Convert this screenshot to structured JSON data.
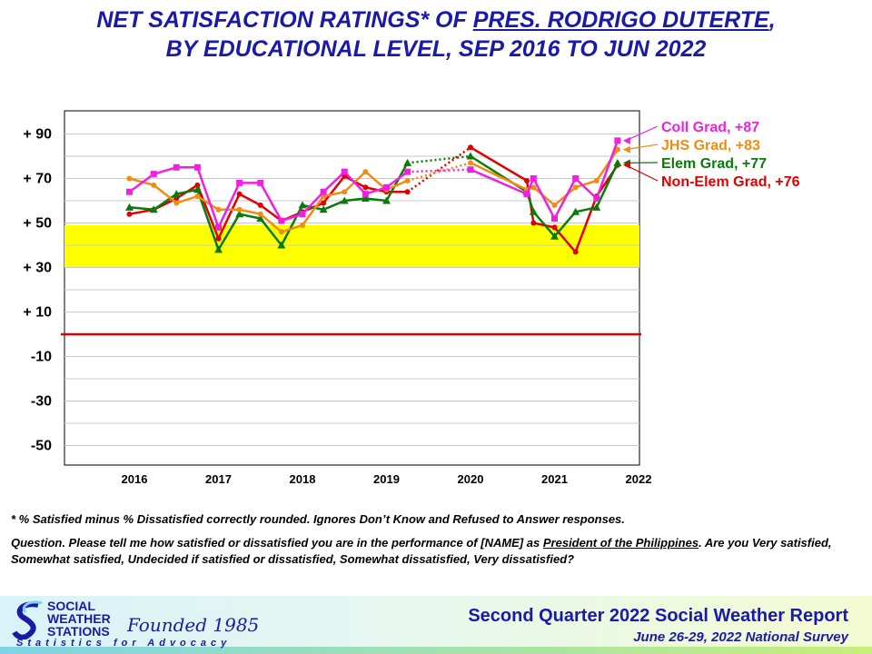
{
  "title": {
    "line1_pre": "NET SATISFACTION RATINGS* OF ",
    "line1_name": "PRES. RODRIGO DUTERTE",
    "line1_post": ",",
    "line2": "BY EDUCATIONAL LEVEL, SEP 2016 TO JUN 2022"
  },
  "chart_data": {
    "type": "line",
    "ylim": [
      -58,
      100
    ],
    "yticks": [
      {
        "value": 90,
        "label": "+ 90"
      },
      {
        "value": 70,
        "label": "+ 70"
      },
      {
        "value": 50,
        "label": "+ 50"
      },
      {
        "value": 30,
        "label": "+ 30"
      },
      {
        "value": 10,
        "label": "+ 10"
      },
      {
        "value": -10,
        "label": "-10"
      },
      {
        "value": -30,
        "label": "-30"
      },
      {
        "value": -50,
        "label": "-50"
      }
    ],
    "xlim": [
      2015.2,
      2022.1
    ],
    "xticks": [
      {
        "value": 2016,
        "label": "2016"
      },
      {
        "value": 2017,
        "label": "2017"
      },
      {
        "value": 2018,
        "label": "2018"
      },
      {
        "value": 2019,
        "label": "2019"
      },
      {
        "value": 2020,
        "label": "2020"
      },
      {
        "value": 2021,
        "label": "2021"
      },
      {
        "value": 2022,
        "label": "2022"
      }
    ],
    "band": {
      "from": 30,
      "to": 49,
      "color": "#ffff00"
    },
    "zero_line": {
      "value": 0,
      "color": "#e00000"
    },
    "grid": true,
    "gap": {
      "from": 2019.25,
      "to": 2020.0,
      "style": "dotted"
    },
    "series": [
      {
        "name": "Non-Elem Grad",
        "label": "Non-Elem Grad, +76",
        "color": "#e00000",
        "marker": "circle",
        "x": [
          2015.94,
          2016.23,
          2016.5,
          2016.75,
          2017.0,
          2017.25,
          2017.5,
          2017.75,
          2018.0,
          2018.25,
          2018.5,
          2018.75,
          2019.0,
          2019.25,
          2020.0,
          2020.67,
          2020.75,
          2021.0,
          2021.25,
          2021.5,
          2021.75
        ],
        "y": [
          54,
          56,
          61,
          67,
          43,
          63,
          58,
          51,
          55,
          59,
          71,
          66,
          64,
          64,
          84,
          69,
          50,
          48,
          37,
          62,
          76
        ]
      },
      {
        "name": "Elem Grad",
        "label": "Elem Grad, +77",
        "color": "#0a7a0a",
        "marker": "triangle",
        "x": [
          2015.94,
          2016.23,
          2016.5,
          2016.75,
          2017.0,
          2017.25,
          2017.5,
          2017.75,
          2018.0,
          2018.25,
          2018.5,
          2018.75,
          2019.0,
          2019.25,
          2020.0,
          2020.67,
          2020.75,
          2021.0,
          2021.25,
          2021.5,
          2021.75
        ],
        "y": [
          57,
          56,
          63,
          65,
          38,
          54,
          52,
          40,
          58,
          56,
          60,
          61,
          60,
          77,
          80,
          64,
          55,
          44,
          55,
          57,
          77
        ]
      },
      {
        "name": "JHS Grad",
        "label": "JHS Grad, +83",
        "color": "#f08c10",
        "marker": "circle",
        "x": [
          2015.94,
          2016.23,
          2016.5,
          2016.75,
          2017.0,
          2017.25,
          2017.5,
          2017.75,
          2018.0,
          2018.25,
          2018.5,
          2018.75,
          2019.0,
          2019.25,
          2020.0,
          2020.67,
          2020.75,
          2021.0,
          2021.25,
          2021.5,
          2021.75
        ],
        "y": [
          70,
          67,
          59,
          62,
          56,
          56,
          54,
          46,
          49,
          62,
          64,
          73,
          65,
          69,
          77,
          65,
          66,
          58,
          66,
          69,
          83
        ]
      },
      {
        "name": "Coll Grad",
        "label": "Coll Grad, +87",
        "color": "#f020e0",
        "marker": "square",
        "x": [
          2015.94,
          2016.23,
          2016.5,
          2016.75,
          2017.0,
          2017.25,
          2017.5,
          2017.75,
          2018.0,
          2018.25,
          2018.5,
          2018.75,
          2019.0,
          2019.25,
          2020.0,
          2020.67,
          2020.75,
          2021.0,
          2021.25,
          2021.5,
          2021.75
        ],
        "y": [
          64,
          72,
          75,
          75,
          48,
          68,
          68,
          51,
          54,
          64,
          73,
          63,
          66,
          73,
          74,
          63,
          70,
          52,
          70,
          61,
          87
        ]
      }
    ]
  },
  "footnote": "* % Satisfied  minus  % Dissatisfied  correctly  rounded.  Ignores  Don’t Know  and Refused  to  Answer responses.",
  "question": {
    "pre": "Question.  Please  tell  me  how  satisfied  or  dissatisfied  you  are  in  the  performance  of  [NAME]  as ",
    "underlined": "President  of  the Philippines",
    "post": ".  Are you  Very  satisfied,  Somewhat  satisfied,  Undecided  if satisfied  or dissatisfied,  Somewhat dissatisfied,  Very dissatisfied?"
  },
  "logo": {
    "line1": "SOCIAL",
    "line2": "WEATHER",
    "line3": "STATIONS",
    "founded": "Founded 1985",
    "tagline": "Statistics for Advocacy"
  },
  "report": {
    "title": "Second Quarter 2022 Social Weather Report",
    "subtitle": "June 26-29, 2022 National Survey"
  }
}
